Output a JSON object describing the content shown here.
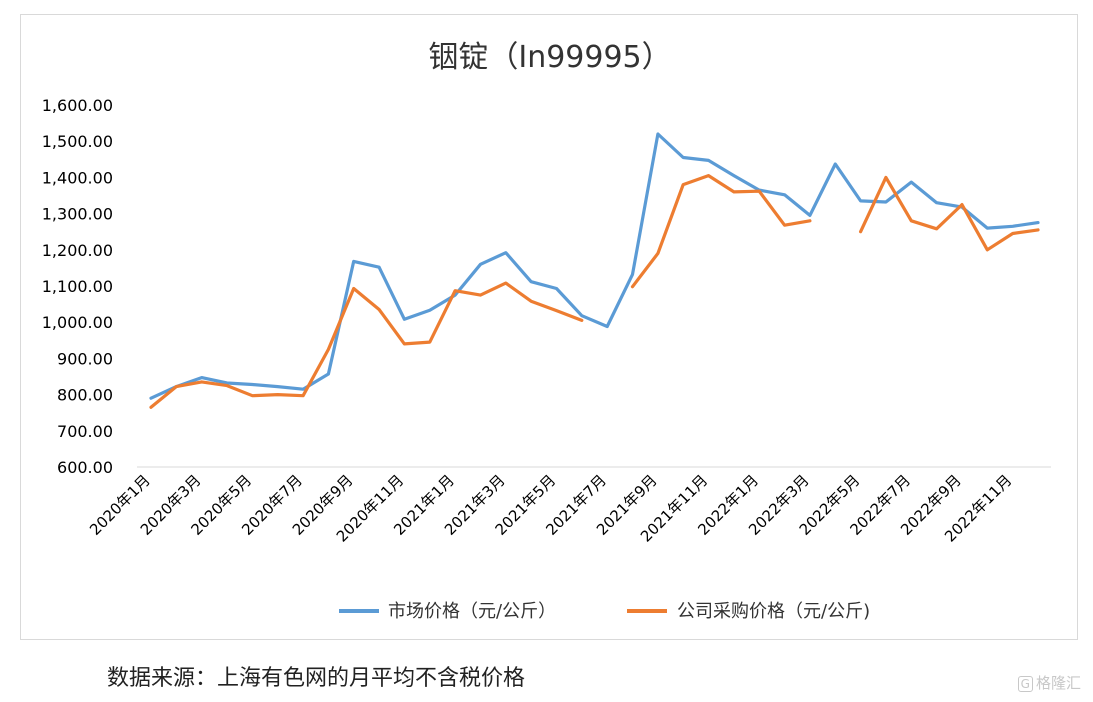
{
  "chart_data": {
    "type": "line",
    "title": "铟锭（In99995）",
    "x": [
      "2020年1月",
      "2020年2月",
      "2020年3月",
      "2020年4月",
      "2020年5月",
      "2020年6月",
      "2020年7月",
      "2020年8月",
      "2020年9月",
      "2020年10月",
      "2020年11月",
      "2020年12月",
      "2021年1月",
      "2021年2月",
      "2021年3月",
      "2021年4月",
      "2021年5月",
      "2021年6月",
      "2021年7月",
      "2021年8月",
      "2021年9月",
      "2021年10月",
      "2021年11月",
      "2021年12月",
      "2022年1月",
      "2022年2月",
      "2022年3月",
      "2022年4月",
      "2022年5月",
      "2022年6月",
      "2022年7月",
      "2022年8月",
      "2022年9月",
      "2022年10月",
      "2022年11月",
      "2022年12月"
    ],
    "tick_labels": [
      "2020年1月",
      "2020年3月",
      "2020年5月",
      "2020年7月",
      "2020年9月",
      "2020年11月",
      "2021年1月",
      "2021年3月",
      "2021年5月",
      "2021年7月",
      "2021年9月",
      "2021年11月",
      "2022年1月",
      "2022年3月",
      "2022年5月",
      "2022年7月",
      "2022年9月",
      "2022年11月"
    ],
    "ylim": [
      600,
      1600
    ],
    "yticks": [
      "600.00",
      "700.00",
      "800.00",
      "900.00",
      "1,000.00",
      "1,100.00",
      "1,200.00",
      "1,300.00",
      "1,400.00",
      "1,500.00",
      "1,600.00"
    ],
    "grid": false,
    "legend_position": "bottom",
    "series": [
      {
        "name": "市场价格（元/公斤）",
        "color": "#5b9bd5",
        "values": [
          790,
          822,
          847,
          832,
          828,
          822,
          815,
          857,
          1168,
          1152,
          1008,
          1033,
          1075,
          1160,
          1192,
          1112,
          1093,
          1018,
          988,
          1132,
          1520,
          1455,
          1447,
          1405,
          1365,
          1352,
          1295,
          1437,
          1335,
          1332,
          1387,
          1330,
          1318,
          1260,
          1265,
          1275
        ]
      },
      {
        "name": "公司采购价格（元/公斤)",
        "color": "#ed7d31",
        "values": [
          765,
          822,
          835,
          825,
          797,
          800,
          797,
          925,
          1093,
          1035,
          940,
          945,
          1087,
          1075,
          1108,
          1058,
          1032,
          1005,
          null,
          1098,
          1190,
          1380,
          1405,
          1360,
          1362,
          1268,
          1280,
          null,
          1250,
          1400,
          1280,
          1258,
          1325,
          1200,
          1245,
          1255
        ]
      }
    ]
  },
  "source_note": "数据来源：上海有色网的月平均不含税价格",
  "watermark": {
    "badge": "G",
    "text": "格隆汇"
  }
}
